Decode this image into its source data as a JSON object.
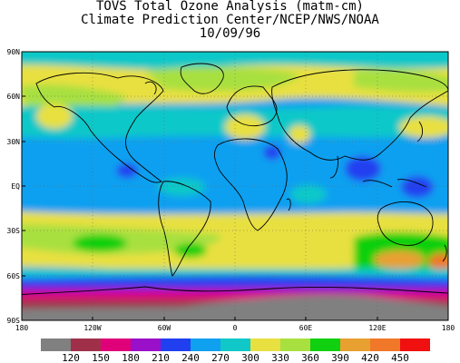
{
  "title": {
    "line1": "TOVS Total Ozone Analysis (matm-cm)",
    "line2": "Climate Prediction Center/NCEP/NWS/NOAA",
    "line3": "10/09/96"
  },
  "map": {
    "lat_ticks": [
      "90N",
      "60N",
      "30N",
      "EQ",
      "30S",
      "60S",
      "90S"
    ],
    "lon_ticks": [
      "180",
      "120W",
      "60W",
      "0",
      "60E",
      "120E",
      "180"
    ]
  },
  "colorbar": {
    "labels": [
      "120",
      "150",
      "180",
      "210",
      "240",
      "270",
      "300",
      "330",
      "360",
      "390",
      "420",
      "450"
    ],
    "colors": [
      "#808080",
      "#a0304a",
      "#e0007a",
      "#9a10c8",
      "#2040f0",
      "#10a0f0",
      "#10c8c8",
      "#e8e040",
      "#a8e040",
      "#10d010",
      "#e8a030",
      "#f07828",
      "#f01010"
    ]
  }
}
